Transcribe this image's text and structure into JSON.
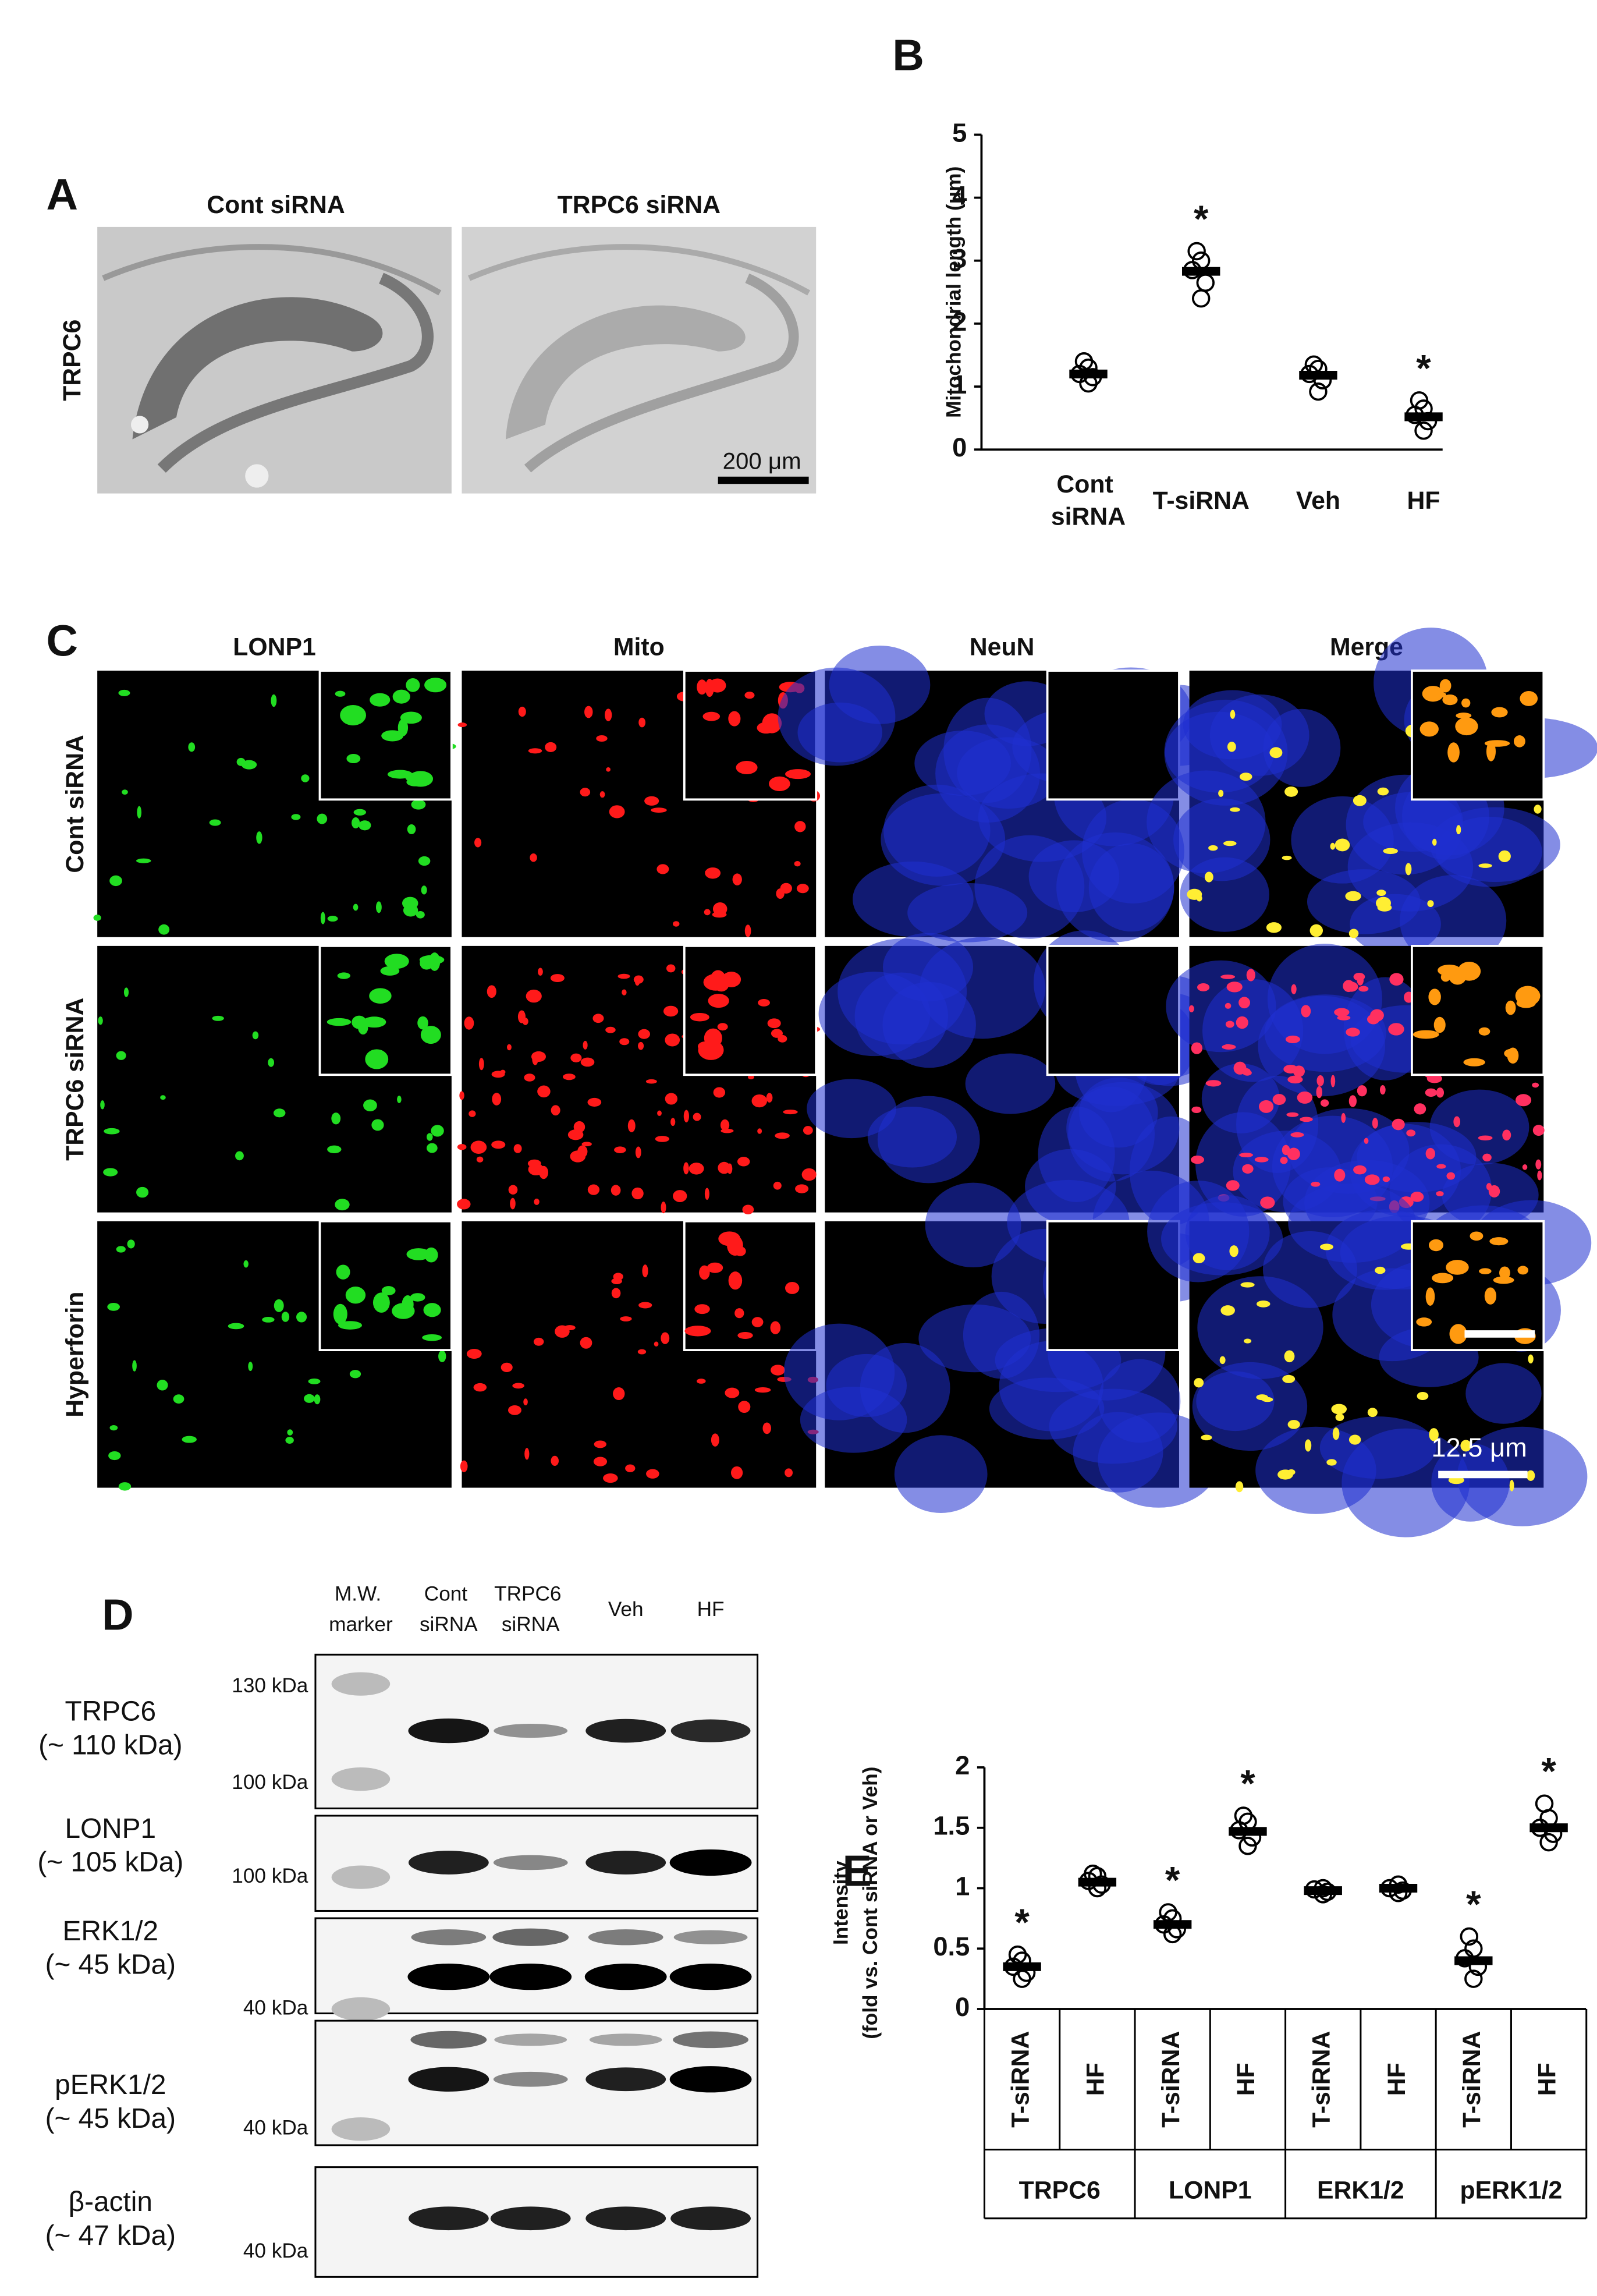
{
  "panel_a": {
    "label": "A",
    "columns": [
      "Cont siRNA",
      "TRPC6 siRNA"
    ],
    "row_label": "TRPC6",
    "scale_bar": "200 μm"
  },
  "chart_data": [
    {
      "type": "dot",
      "panel_label": "B",
      "y_label": "Mitochondrial length (μm)",
      "categories": [
        "Cont siRNA",
        "T-siRNA",
        "Veh",
        "HF"
      ],
      "values": [
        1.2,
        2.83,
        1.18,
        0.52
      ],
      "points": [
        [
          1.05,
          1.15,
          1.2,
          1.3,
          1.4
        ],
        [
          2.4,
          2.65,
          2.85,
          3.0,
          3.15
        ],
        [
          0.92,
          1.1,
          1.2,
          1.28,
          1.35
        ],
        [
          0.3,
          0.45,
          0.55,
          0.65,
          0.78
        ]
      ],
      "significance": [
        null,
        "*",
        null,
        "*"
      ],
      "ylim": [
        0,
        5
      ],
      "yticks": [
        0,
        1,
        2,
        3,
        4,
        5
      ]
    },
    {
      "type": "dot",
      "panel_label": "E",
      "y_label": [
        "Intensity",
        "(fold vs. Cont siRNA or Veh)"
      ],
      "categories": [
        "T-siRNA",
        "HF",
        "T-siRNA",
        "HF",
        "T-siRNA",
        "HF",
        "T-siRNA",
        "HF"
      ],
      "groups": [
        "TRPC6",
        "LONP1",
        "ERK1/2",
        "pERK1/2"
      ],
      "values": [
        0.35,
        1.05,
        0.7,
        1.47,
        0.98,
        1.0,
        0.4,
        1.5
      ],
      "points": [
        [
          0.25,
          0.3,
          0.35,
          0.4,
          0.45
        ],
        [
          1.0,
          1.03,
          1.06,
          1.1,
          1.12
        ],
        [
          0.62,
          0.66,
          0.7,
          0.75,
          0.8
        ],
        [
          1.35,
          1.42,
          1.48,
          1.55,
          1.6
        ],
        [
          0.95,
          0.97,
          0.99,
          1.0
        ],
        [
          0.96,
          0.98,
          1.0,
          1.03
        ],
        [
          0.25,
          0.35,
          0.42,
          0.5,
          0.6
        ],
        [
          1.38,
          1.45,
          1.5,
          1.58,
          1.7
        ]
      ],
      "significance": [
        "*",
        null,
        "*",
        "*",
        null,
        null,
        "*",
        "*"
      ],
      "ylim": [
        0,
        2
      ],
      "yticks": [
        0,
        0.5,
        1,
        1.5,
        2
      ]
    }
  ],
  "panel_c": {
    "label": "C",
    "columns": [
      "LONP1",
      "Mito",
      "NeuN",
      "Merge"
    ],
    "rows": [
      "Cont siRNA",
      "TRPC6 siRNA",
      "Hyperforin"
    ],
    "scale_bar": "12.5 μm"
  },
  "panel_d": {
    "label": "D",
    "lanes": [
      "M.W. marker",
      "Cont siRNA",
      "TRPC6 siRNA",
      "Veh",
      "HF"
    ],
    "blots": [
      {
        "name": "TRPC6",
        "size": "(~ 110 kDa)",
        "markers": [
          "130 kDa",
          "100 kDa"
        ]
      },
      {
        "name": "LONP1",
        "size": "(~ 105 kDa)",
        "markers": [
          "100 kDa"
        ]
      },
      {
        "name": "ERK1/2",
        "size": "(~ 45 kDa)",
        "markers": [
          "40 kDa"
        ]
      },
      {
        "name": "pERK1/2",
        "size": "(~ 45 kDa)",
        "markers": [
          "40 kDa"
        ]
      },
      {
        "name": "β-actin",
        "size": "(~ 47 kDa)",
        "markers": [
          "40 kDa"
        ]
      }
    ]
  }
}
